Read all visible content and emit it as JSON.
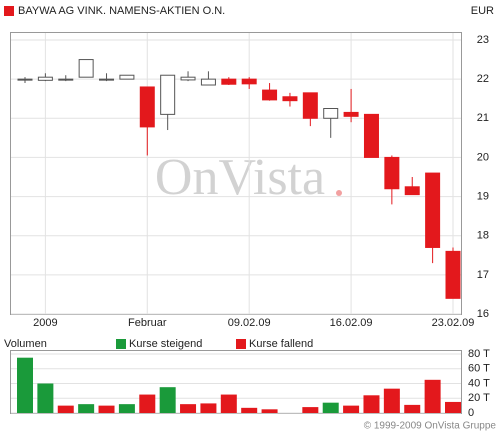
{
  "chart_data": [
    {
      "type": "candlestick",
      "title": "BAYWA AG VINK. NAMENS-AKTIEN O.N.",
      "currency": "EUR",
      "watermark": "OnVista",
      "categories": [
        null,
        "2009",
        null,
        null,
        null,
        null,
        "Februar",
        null,
        null,
        null,
        null,
        "09.02.09",
        null,
        null,
        null,
        null,
        "16.02.09",
        null,
        null,
        null,
        null,
        "23.02.09"
      ],
      "open": [
        22.0,
        21.97,
        22.0,
        22.05,
        22.0,
        22.0,
        21.8,
        21.1,
        21.98,
        21.85,
        22.0,
        22.0,
        21.72,
        21.55,
        21.65,
        21.0,
        21.15,
        21.1,
        20.0,
        19.25,
        19.6,
        17.6
      ],
      "high": [
        22.05,
        22.15,
        22.1,
        22.5,
        22.15,
        22.1,
        21.8,
        22.1,
        22.2,
        22.2,
        22.05,
        22.05,
        21.9,
        21.65,
        21.65,
        21.25,
        21.75,
        21.1,
        20.05,
        19.5,
        19.6,
        17.7
      ],
      "low": [
        21.9,
        21.95,
        21.95,
        22.05,
        21.95,
        22.0,
        20.05,
        20.7,
        21.95,
        21.85,
        21.85,
        21.75,
        21.45,
        21.3,
        20.8,
        20.5,
        20.9,
        20.0,
        18.8,
        19.05,
        17.3,
        16.4
      ],
      "close": [
        22.0,
        22.05,
        22.0,
        22.5,
        22.0,
        22.1,
        20.78,
        22.1,
        22.05,
        22.0,
        21.87,
        21.88,
        21.47,
        21.45,
        21.0,
        21.25,
        21.05,
        20.0,
        19.2,
        19.05,
        17.7,
        16.4
      ],
      "rising_color": "#ffffff",
      "falling_color": "#e3181c",
      "outline_color": "#555555",
      "ylim": [
        16,
        23
      ],
      "yticks": [
        16,
        17,
        18,
        19,
        20,
        21,
        22,
        23
      ],
      "grid": true
    },
    {
      "type": "bar",
      "title": "Volumen",
      "series": [
        {
          "name": "Kurse steigend",
          "color": "#1a9a3a",
          "values": [
            75,
            40,
            null,
            12,
            null,
            12,
            null,
            35,
            null,
            null,
            null,
            null,
            null,
            null,
            null,
            14,
            null,
            null,
            null,
            null,
            null,
            null
          ]
        },
        {
          "name": "Kurse fallend",
          "color": "#e3181c",
          "values": [
            null,
            null,
            10,
            null,
            10,
            null,
            25,
            null,
            12,
            13,
            25,
            7,
            5,
            null,
            8,
            null,
            10,
            24,
            33,
            11,
            45,
            15
          ]
        }
      ],
      "ylim": [
        0,
        80
      ],
      "yticks": [
        {
          "value": 0,
          "label": "0"
        },
        {
          "value": 20,
          "label": "20 T"
        },
        {
          "value": 40,
          "label": "40 T"
        },
        {
          "value": 60,
          "label": "60 T"
        },
        {
          "value": 80,
          "label": "80 T"
        }
      ],
      "grid": true
    }
  ],
  "footer": "© 1999-2009 OnVista Gruppe"
}
